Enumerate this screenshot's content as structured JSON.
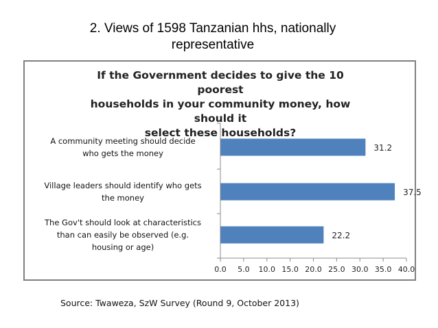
{
  "slide": {
    "title_line1": "2. Views of 1598 Tanzanian hhs, nationally",
    "title_line2": "representative",
    "source": "Source: Twaweza, SzW Survey (Round 9, October 2013)"
  },
  "chart_data": {
    "type": "bar",
    "orientation": "horizontal",
    "title": "If the Government decides to give the 10 poorest households in your community money, how should it select these households?",
    "title_lines": [
      "If the Government decides to give the 10 poorest",
      "households in your community money, how should it",
      "select these households?"
    ],
    "categories": [
      "A community meeting should decide who gets the money",
      "Village leaders should identify who gets the money",
      "The Gov't should look at characteristics than can easily be observed (e.g. housing or age)"
    ],
    "category_lines": [
      [
        "A community meeting should decide",
        "who gets the money"
      ],
      [
        "Village leaders should identify who gets",
        "the money"
      ],
      [
        "The Gov't should look at characteristics",
        "than can easily be observed (e.g.",
        "housing or age)"
      ]
    ],
    "values": [
      31.2,
      37.5,
      22.2
    ],
    "value_labels": [
      "31.2",
      "37.5",
      "22.2"
    ],
    "xlim": [
      0,
      40
    ],
    "xticks": [
      "0.0",
      "5.0",
      "10.0",
      "15.0",
      "20.0",
      "25.0",
      "30.0",
      "35.0",
      "40.0"
    ],
    "bar_color": "#4f81bd",
    "grid": false,
    "legend": false
  }
}
